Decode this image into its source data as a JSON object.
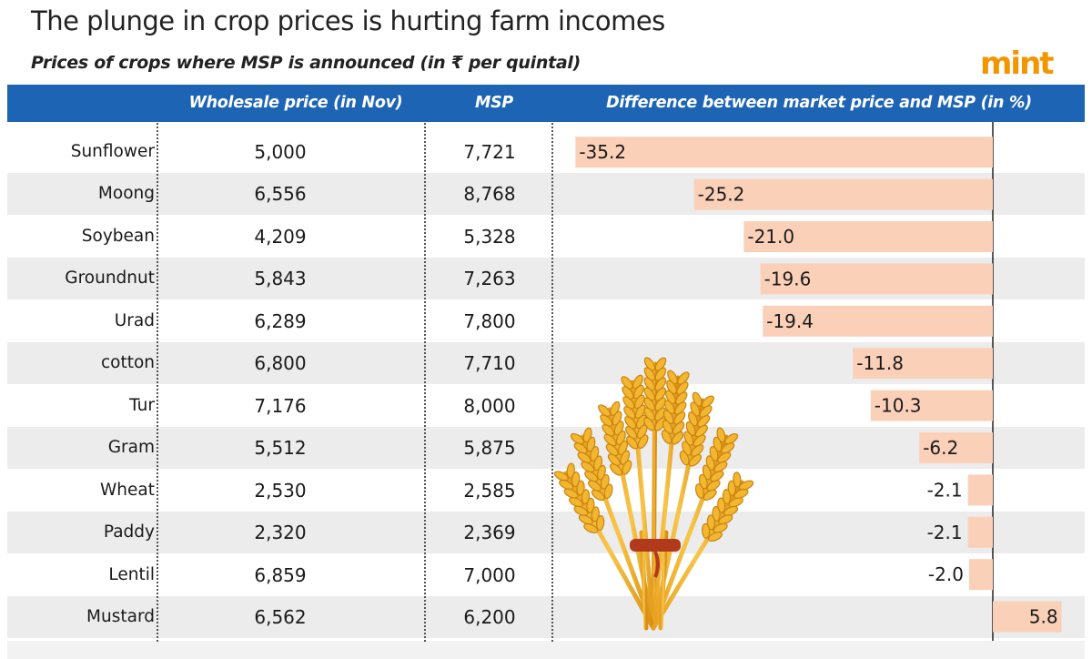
{
  "title": "The plunge in crop prices is hurting farm incomes",
  "subtitle": "Prices of crops where MSP is announced (in ₹ per quintal)",
  "logo": "mint",
  "columns": {
    "wholesale": "Wholesale price (in Nov)",
    "msp": "MSP",
    "difference": "Difference between market price and MSP (in %)"
  },
  "colors": {
    "header_bg": "#1e64b4",
    "bar": "#fbd0b8",
    "logo": "#f29600",
    "row_shade": "#ececec"
  },
  "rows": [
    {
      "crop": "Sunflower",
      "wholesale": "5,000",
      "msp": "7,721",
      "label": "-35.2"
    },
    {
      "crop": "Moong",
      "wholesale": "6,556",
      "msp": "8,768",
      "label": "-25.2"
    },
    {
      "crop": "Soybean",
      "wholesale": "4,209",
      "msp": "5,328",
      "label": "-21.0"
    },
    {
      "crop": "Groundnut",
      "wholesale": "5,843",
      "msp": "7,263",
      "label": "-19.6"
    },
    {
      "crop": "Urad",
      "wholesale": "6,289",
      "msp": "7,800",
      "label": "-19.4"
    },
    {
      "crop": "cotton",
      "wholesale": "6,800",
      "msp": "7,710",
      "label": "-11.8"
    },
    {
      "crop": "Tur",
      "wholesale": "7,176",
      "msp": "8,000",
      "label": "-10.3"
    },
    {
      "crop": "Gram",
      "wholesale": "5,512",
      "msp": "5,875",
      "label": "-6.2"
    },
    {
      "crop": "Wheat",
      "wholesale": "2,530",
      "msp": "2,585",
      "label": "-2.1"
    },
    {
      "crop": "Paddy",
      "wholesale": "2,320",
      "msp": "2,369",
      "label": "-2.1"
    },
    {
      "crop": "Lentil",
      "wholesale": "6,859",
      "msp": "7,000",
      "label": "-2.0"
    },
    {
      "crop": "Mustard",
      "wholesale": "6,562",
      "msp": "6,200",
      "label": "5.8"
    }
  ],
  "chart_data": {
    "type": "bar",
    "orientation": "horizontal",
    "categories": [
      "Sunflower",
      "Moong",
      "Soybean",
      "Groundnut",
      "Urad",
      "cotton",
      "Tur",
      "Gram",
      "Wheat",
      "Paddy",
      "Lentil",
      "Mustard"
    ],
    "values": [
      -35.2,
      -25.2,
      -21.0,
      -19.6,
      -19.4,
      -11.8,
      -10.3,
      -6.2,
      -2.1,
      -2.1,
      -2.0,
      5.8
    ],
    "xlim": [
      -35.2,
      7.5
    ],
    "grid": false,
    "baseline": 0
  }
}
